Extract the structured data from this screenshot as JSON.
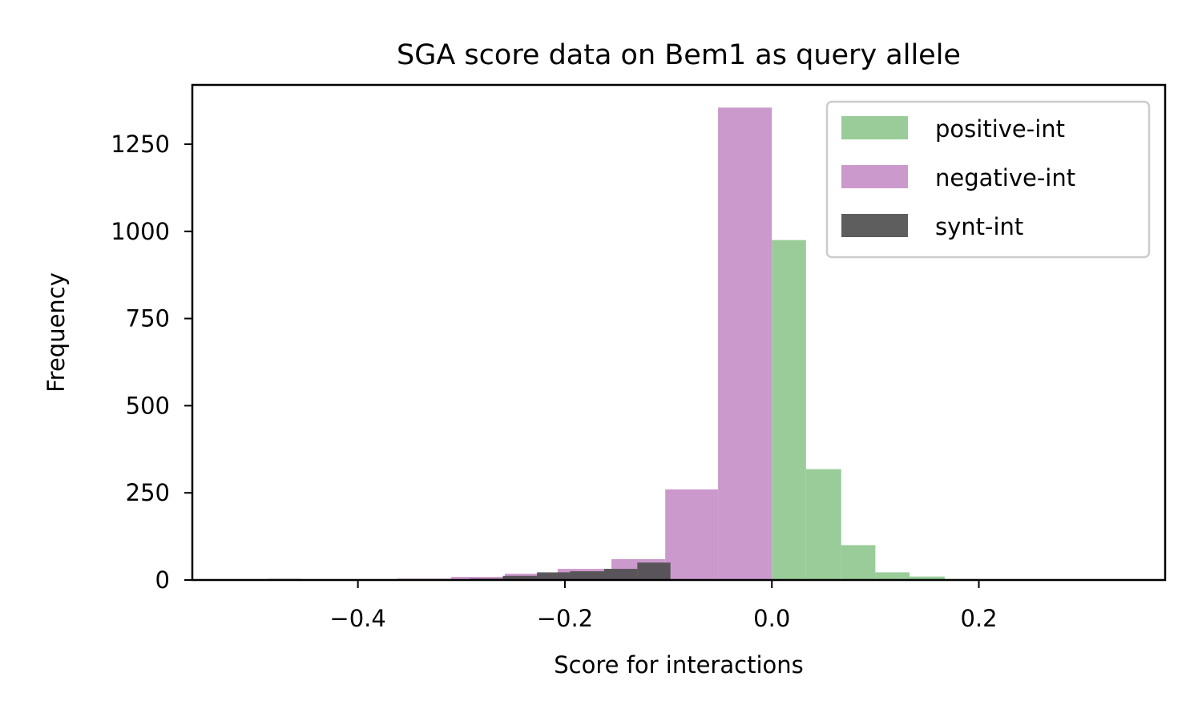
{
  "chart_data": {
    "type": "bar",
    "title": "SGA score data on Bem1 as query allele",
    "xlabel": "Score for interactions",
    "ylabel": "Frequency",
    "xlim": [
      -0.56,
      0.38
    ],
    "ylim": [
      0,
      1420
    ],
    "xticks": [
      -0.4,
      -0.2,
      0.0,
      0.2
    ],
    "xtick_labels": [
      "−0.4",
      "−0.2",
      "0.0",
      "0.2"
    ],
    "yticks": [
      0,
      250,
      500,
      750,
      1000,
      1250
    ],
    "ytick_labels": [
      "0",
      "250",
      "500",
      "750",
      "1000",
      "1250"
    ],
    "grid": false,
    "legend_position": "top-right",
    "series": [
      {
        "name": "positive-int",
        "color": "#99cc99",
        "bins": [
          {
            "x0": 0.0,
            "x1": 0.033,
            "value": 975
          },
          {
            "x0": 0.033,
            "x1": 0.067,
            "value": 318
          },
          {
            "x0": 0.067,
            "x1": 0.1,
            "value": 100
          },
          {
            "x0": 0.1,
            "x1": 0.133,
            "value": 22
          },
          {
            "x0": 0.133,
            "x1": 0.167,
            "value": 10
          },
          {
            "x0": 0.167,
            "x1": 0.2,
            "value": 3
          },
          {
            "x0": 0.2,
            "x1": 0.233,
            "value": 1
          }
        ]
      },
      {
        "name": "negative-int",
        "color": "#cc99cc",
        "bins": [
          {
            "x0": -0.052,
            "x1": 0.0,
            "value": 1355
          },
          {
            "x0": -0.103,
            "x1": -0.052,
            "value": 260
          },
          {
            "x0": -0.155,
            "x1": -0.103,
            "value": 60
          },
          {
            "x0": -0.207,
            "x1": -0.155,
            "value": 32
          },
          {
            "x0": -0.258,
            "x1": -0.207,
            "value": 18
          },
          {
            "x0": -0.31,
            "x1": -0.258,
            "value": 9
          },
          {
            "x0": -0.362,
            "x1": -0.31,
            "value": 4
          },
          {
            "x0": -0.413,
            "x1": -0.362,
            "value": 2
          },
          {
            "x0": -0.465,
            "x1": -0.413,
            "value": 1
          },
          {
            "x0": -0.517,
            "x1": -0.465,
            "value": 1
          }
        ]
      },
      {
        "name": "synt-int",
        "color": "#4d4d4d",
        "bins": [
          {
            "x0": -0.13,
            "x1": -0.098,
            "value": 50
          },
          {
            "x0": -0.162,
            "x1": -0.13,
            "value": 32
          },
          {
            "x0": -0.195,
            "x1": -0.162,
            "value": 25
          },
          {
            "x0": -0.227,
            "x1": -0.195,
            "value": 22
          },
          {
            "x0": -0.26,
            "x1": -0.227,
            "value": 12
          },
          {
            "x0": -0.292,
            "x1": -0.26,
            "value": 4
          },
          {
            "x0": -0.325,
            "x1": -0.292,
            "value": 2
          },
          {
            "x0": -0.357,
            "x1": -0.325,
            "value": 2
          },
          {
            "x0": -0.39,
            "x1": -0.357,
            "value": 2
          },
          {
            "x0": -0.422,
            "x1": -0.39,
            "value": 2
          },
          {
            "x0": -0.455,
            "x1": -0.422,
            "value": 2
          },
          {
            "x0": -0.487,
            "x1": -0.455,
            "value": 3
          },
          {
            "x0": -0.52,
            "x1": -0.487,
            "value": 2
          }
        ]
      }
    ]
  }
}
